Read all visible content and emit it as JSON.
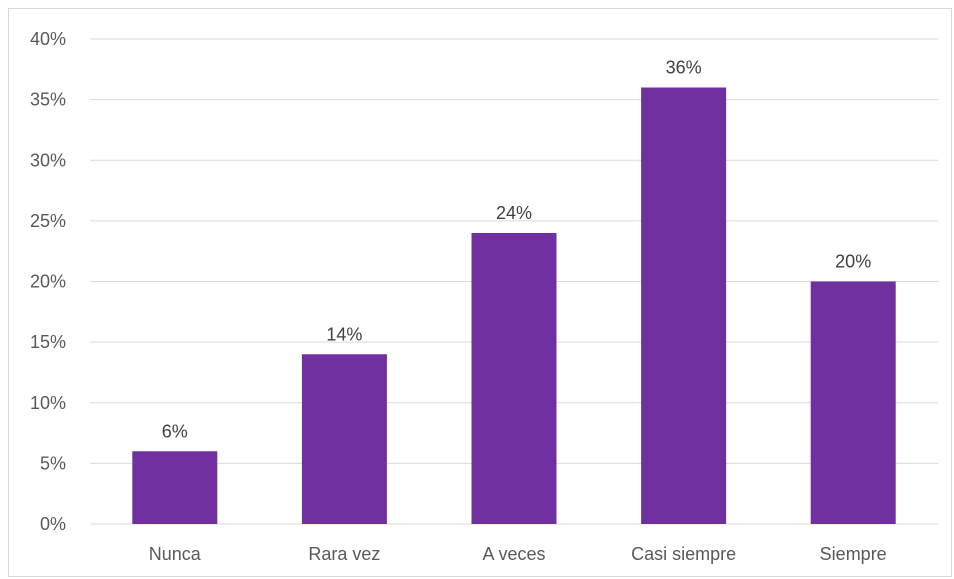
{
  "chart_data": {
    "type": "bar",
    "title": "",
    "xlabel": "",
    "ylabel": "",
    "categories": [
      "Nunca",
      "Rara vez",
      "A veces",
      "Casi siempre",
      "Siempre"
    ],
    "values": [
      6,
      14,
      24,
      36,
      20
    ],
    "value_labels": [
      "6%",
      "14%",
      "24%",
      "36%",
      "20%"
    ],
    "ylim": [
      0,
      40
    ],
    "yticks": [
      0,
      5,
      10,
      15,
      20,
      25,
      30,
      35,
      40
    ],
    "ytick_labels": [
      "0%",
      "5%",
      "10%",
      "15%",
      "20%",
      "25%",
      "30%",
      "35%",
      "40%"
    ],
    "grid": true,
    "legend": "none",
    "colors": {
      "bar": "#7030a0",
      "grid": "#d9d9d9",
      "axis_text": "#595959",
      "label_text": "#404040"
    }
  }
}
